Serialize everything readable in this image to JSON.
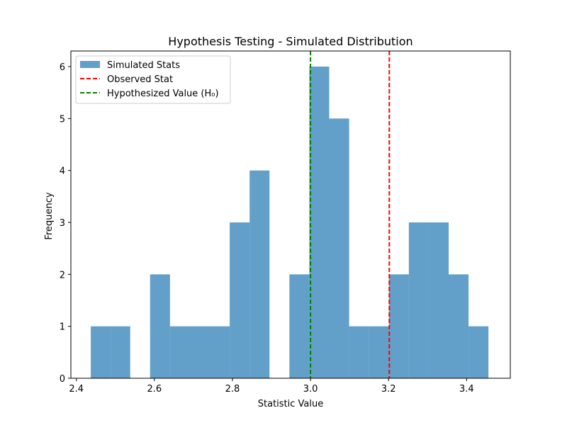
{
  "chart_data": {
    "type": "bar",
    "subtype": "histogram",
    "title": "Hypothesis Testing - Simulated Distribution",
    "xlabel": "Statistic Value",
    "ylabel": "Frequency",
    "xlim": [
      2.386,
      3.512
    ],
    "ylim": [
      0,
      6.3
    ],
    "xticks": [
      2.4,
      2.6,
      2.8,
      3.0,
      3.2,
      3.4
    ],
    "xtick_labels": [
      "2.4",
      "2.6",
      "2.8",
      "3.0",
      "3.2",
      "3.4"
    ],
    "yticks": [
      0,
      1,
      2,
      3,
      4,
      5,
      6
    ],
    "ytick_labels": [
      "0",
      "1",
      "2",
      "3",
      "4",
      "5",
      "6"
    ],
    "bins": [
      {
        "x0": 2.437,
        "x1": 2.488,
        "count": 1
      },
      {
        "x0": 2.488,
        "x1": 2.538,
        "count": 1
      },
      {
        "x0": 2.538,
        "x1": 2.589,
        "count": 0
      },
      {
        "x0": 2.589,
        "x1": 2.64,
        "count": 2
      },
      {
        "x0": 2.64,
        "x1": 2.691,
        "count": 1
      },
      {
        "x0": 2.691,
        "x1": 2.742,
        "count": 1
      },
      {
        "x0": 2.742,
        "x1": 2.793,
        "count": 1
      },
      {
        "x0": 2.793,
        "x1": 2.844,
        "count": 3
      },
      {
        "x0": 2.844,
        "x1": 2.895,
        "count": 4
      },
      {
        "x0": 2.895,
        "x1": 2.946,
        "count": 0
      },
      {
        "x0": 2.946,
        "x1": 2.997,
        "count": 2
      },
      {
        "x0": 2.997,
        "x1": 3.048,
        "count": 6
      },
      {
        "x0": 3.048,
        "x1": 3.099,
        "count": 5
      },
      {
        "x0": 3.099,
        "x1": 3.15,
        "count": 1
      },
      {
        "x0": 3.15,
        "x1": 3.201,
        "count": 1
      },
      {
        "x0": 3.201,
        "x1": 3.252,
        "count": 2
      },
      {
        "x0": 3.252,
        "x1": 3.303,
        "count": 3
      },
      {
        "x0": 3.303,
        "x1": 3.354,
        "count": 3
      },
      {
        "x0": 3.354,
        "x1": 3.405,
        "count": 2
      },
      {
        "x0": 3.405,
        "x1": 3.456,
        "count": 1
      }
    ],
    "series": [
      {
        "name": "Simulated Stats",
        "kind": "histogram",
        "color": "#1f77b4",
        "opacity": 0.7
      },
      {
        "name": "Observed Stat",
        "kind": "vline",
        "x": 3.202,
        "color": "#ff0000",
        "style": "dashed"
      },
      {
        "name": "Hypothesized Value (H₀)",
        "kind": "vline",
        "x": 3.0,
        "color": "#008000",
        "style": "dashed"
      }
    ],
    "legend": {
      "position": "top-left"
    },
    "grid": false
  }
}
